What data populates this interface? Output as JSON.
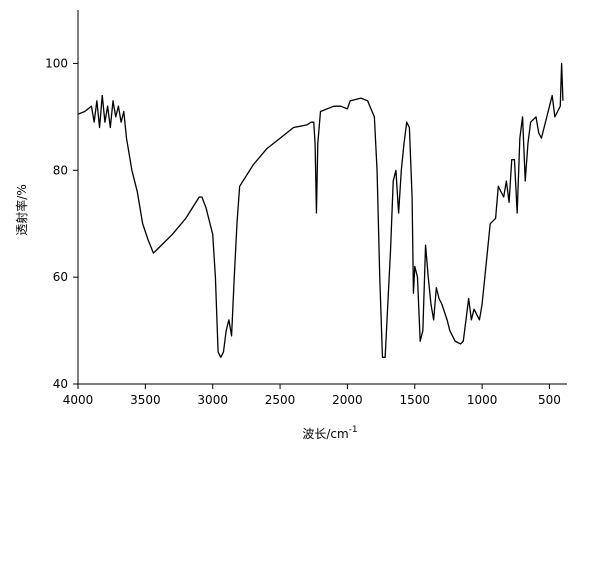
{
  "chart_data": {
    "type": "line",
    "xlabel": "波长/cm",
    "xlabel_sup": "-1",
    "ylabel": "透射率/%",
    "xlim": [
      4000,
      370
    ],
    "ylim": [
      40,
      110
    ],
    "xticks": [
      4000,
      3500,
      3000,
      2500,
      2000,
      1500,
      1000,
      500
    ],
    "yticks": [
      40,
      60,
      80,
      100
    ],
    "series": [
      {
        "color": "#000000",
        "x": [
          4000,
          3950,
          3900,
          3880,
          3860,
          3840,
          3820,
          3800,
          3780,
          3760,
          3740,
          3720,
          3700,
          3680,
          3660,
          3640,
          3620,
          3600,
          3560,
          3520,
          3480,
          3440,
          3400,
          3300,
          3200,
          3100,
          3080,
          3050,
          3000,
          2980,
          2960,
          2940,
          2920,
          2900,
          2880,
          2860,
          2840,
          2820,
          2800,
          2750,
          2700,
          2600,
          2500,
          2400,
          2300,
          2270,
          2250,
          2240,
          2230,
          2220,
          2200,
          2100,
          2050,
          2000,
          1980,
          1900,
          1850,
          1800,
          1780,
          1760,
          1740,
          1720,
          1700,
          1680,
          1660,
          1640,
          1620,
          1600,
          1580,
          1560,
          1540,
          1520,
          1510,
          1500,
          1480,
          1460,
          1440,
          1420,
          1400,
          1380,
          1360,
          1340,
          1320,
          1300,
          1260,
          1240,
          1200,
          1160,
          1140,
          1120,
          1100,
          1080,
          1060,
          1040,
          1020,
          1000,
          980,
          960,
          940,
          900,
          880,
          860,
          840,
          820,
          800,
          780,
          760,
          740,
          720,
          700,
          680,
          660,
          640,
          600,
          580,
          560,
          520,
          500,
          480,
          460,
          440,
          420,
          410,
          400
        ],
        "values": [
          90.5,
          91,
          92,
          89,
          93,
          88,
          94,
          89,
          92,
          88,
          93,
          90,
          92,
          89,
          91,
          86,
          83,
          80,
          76,
          70,
          67,
          64.5,
          65.5,
          68,
          71,
          75,
          75,
          73,
          68,
          60,
          46,
          45,
          46,
          50,
          52,
          49,
          60,
          70,
          77,
          79,
          81,
          84,
          86,
          88,
          88.5,
          89,
          89,
          85,
          72,
          85,
          91,
          92,
          92,
          91.5,
          93,
          93.5,
          93,
          90,
          80,
          60,
          45,
          45,
          55,
          65,
          78,
          80,
          72,
          80,
          85,
          89,
          88,
          75,
          57,
          62,
          60,
          48,
          50,
          66,
          60,
          55,
          52,
          58,
          56,
          55,
          52,
          50,
          48,
          47.5,
          48,
          52,
          56,
          52,
          54,
          53,
          52,
          55,
          60,
          65,
          70,
          71,
          77,
          76,
          75,
          78,
          74,
          82,
          82,
          72,
          86,
          90,
          78,
          85,
          89,
          90,
          87,
          86,
          90,
          92,
          94,
          90,
          91,
          92,
          100,
          93
        ]
      }
    ]
  }
}
